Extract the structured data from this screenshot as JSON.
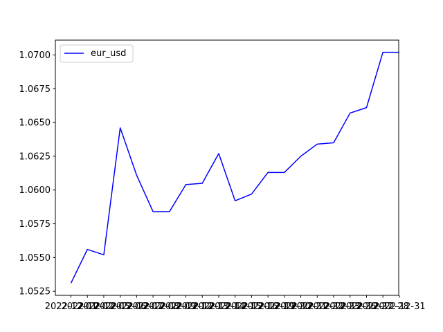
{
  "chart_data": {
    "type": "line",
    "title": "",
    "xlabel": "",
    "ylabel": "",
    "x": [
      "2022-12-01",
      "2022-12-02",
      "2022-12-05",
      "2022-12-06",
      "2022-12-07",
      "2022-12-08",
      "2022-12-09",
      "2022-12-12",
      "2022-12-13",
      "2022-12-14",
      "2022-12-15",
      "2022-12-16",
      "2022-12-19",
      "2022-12-20",
      "2022-12-21",
      "2022-12-22",
      "2022-12-23",
      "2022-12-26",
      "2022-12-27",
      "2022-12-28",
      "2022-12-31"
    ],
    "series": [
      {
        "name": "eur_usd",
        "color": "#0000ff",
        "values": [
          1.0531,
          1.0556,
          1.0552,
          1.0646,
          1.0611,
          1.0584,
          1.0584,
          1.0604,
          1.0605,
          1.0627,
          1.0592,
          1.0597,
          1.0613,
          1.0613,
          1.0625,
          1.0634,
          1.0635,
          1.0657,
          1.0661,
          1.0702,
          1.0702
        ]
      }
    ],
    "ylim": [
      1.0522,
      1.0711
    ],
    "yticks": [
      "1.0525",
      "1.0550",
      "1.0575",
      "1.0600",
      "1.0625",
      "1.0650",
      "1.0675",
      "1.0700"
    ],
    "xtick_labels": [
      "2022-12-01",
      "2022-12-02",
      "2022-12-05",
      "2022-12-06",
      "2022-12-07",
      "2022-12-08",
      "2022-12-09",
      "2022-12-12",
      "2022-12-13",
      "2022-12-14",
      "2022-12-15",
      "2022-12-16",
      "2022-12-19",
      "2022-12-20",
      "2022-12-21",
      "2022-12-22",
      "2022-12-23",
      "2022-12-26",
      "2022-12-27",
      "2022-12-28",
      "2022-12-31"
    ],
    "legend": {
      "placement": "upper-left"
    },
    "grid": false
  }
}
